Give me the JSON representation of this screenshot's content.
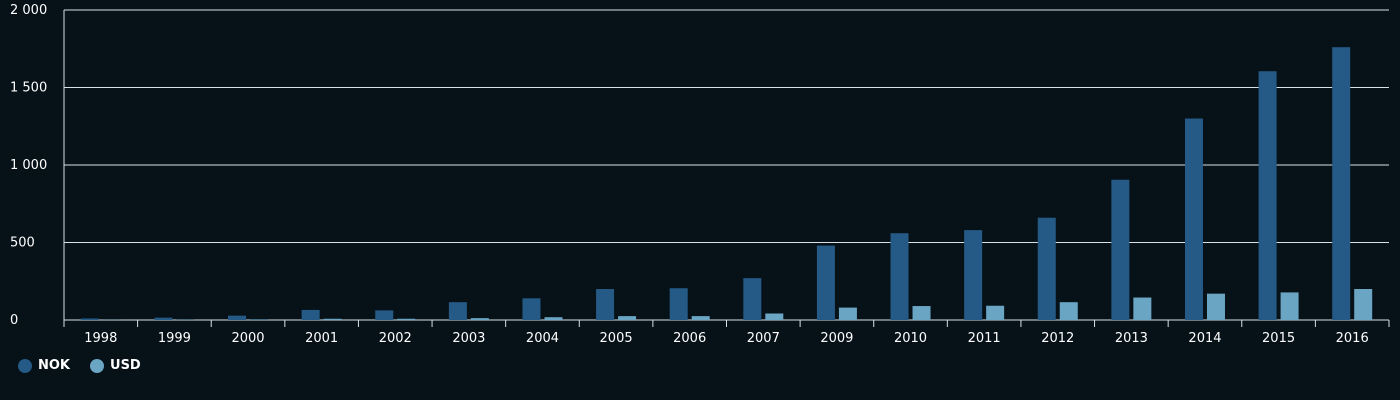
{
  "chart_data": {
    "type": "bar",
    "categories": [
      "1998",
      "1999",
      "2000",
      "2001",
      "2002",
      "2003",
      "2004",
      "2005",
      "2006",
      "2007",
      "2009",
      "2010",
      "2011",
      "2012",
      "2013",
      "2014",
      "2015",
      "2016"
    ],
    "series": [
      {
        "name": "NOK",
        "color": "#245a85",
        "values": [
          10,
          15,
          28,
          65,
          62,
          115,
          140,
          200,
          205,
          270,
          480,
          560,
          580,
          660,
          905,
          1300,
          1605,
          1760
        ]
      },
      {
        "name": "USD",
        "color": "#6aa6c4",
        "values": [
          1,
          2,
          4,
          8,
          8,
          12,
          18,
          25,
          25,
          42,
          80,
          90,
          92,
          115,
          145,
          170,
          178,
          200
        ]
      }
    ],
    "ylim": [
      0,
      2000
    ],
    "yticks": [
      {
        "value": 0,
        "label": "0"
      },
      {
        "value": 500,
        "label": "500"
      },
      {
        "value": 1000,
        "label": "1 000"
      },
      {
        "value": 1500,
        "label": "1 500"
      },
      {
        "value": 2000,
        "label": "2 000"
      }
    ],
    "grid": true,
    "legend_position": "bottom-left",
    "colors": {
      "background": "#061118",
      "grid": "#d8e1e8",
      "text": "#ffffff"
    }
  }
}
